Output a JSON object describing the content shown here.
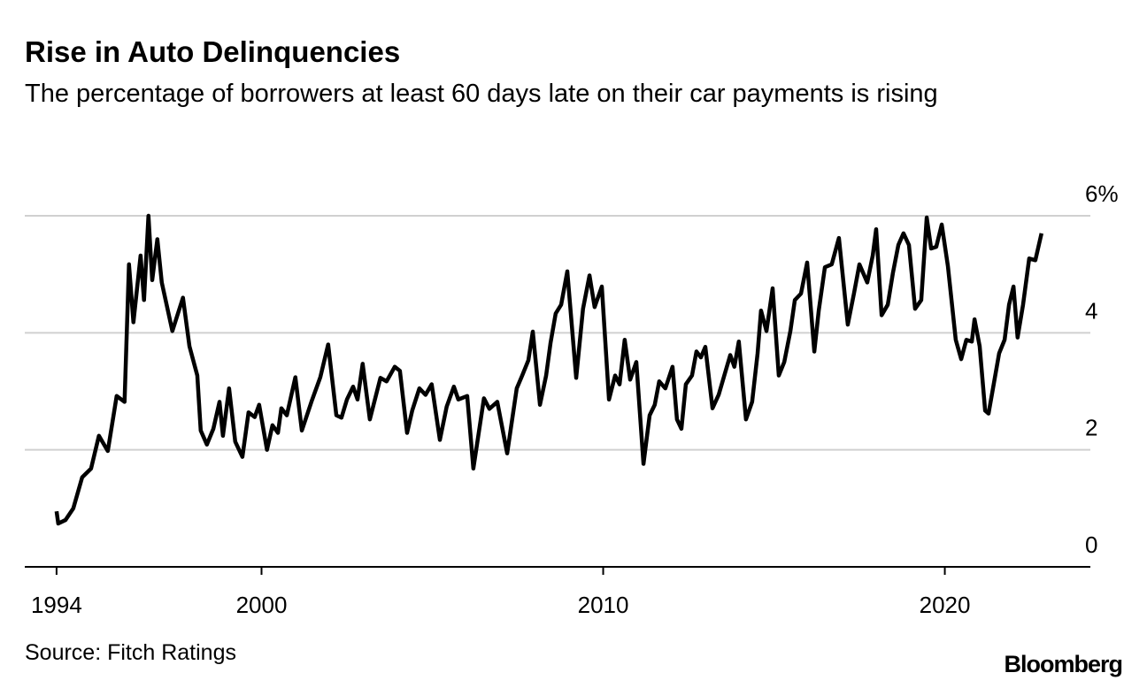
{
  "chart_data": {
    "type": "line",
    "title": "Rise in Auto Delinquencies",
    "subtitle": "The percentage of borrowers at least 60 days late on their car payments is rising",
    "source": "Source: Fitch Ratings",
    "brand": "Bloomberg",
    "x": [
      1994.0,
      1994.05,
      1994.26,
      1994.49,
      1994.75,
      1995.01,
      1995.24,
      1995.5,
      1995.76,
      1995.99,
      1996.12,
      1996.25,
      1996.46,
      1996.56,
      1996.69,
      1996.8,
      1996.95,
      1997.08,
      1997.39,
      1997.7,
      1997.89,
      1998.12,
      1998.22,
      1998.4,
      1998.59,
      1998.77,
      1998.87,
      1999.05,
      1999.23,
      1999.44,
      1999.62,
      1999.8,
      1999.93,
      2000.16,
      2000.32,
      2000.48,
      2000.58,
      2000.74,
      2000.99,
      2001.18,
      2001.46,
      2001.72,
      2001.95,
      2002.19,
      2002.34,
      2002.5,
      2002.68,
      2002.81,
      2002.96,
      2003.17,
      2003.48,
      2003.66,
      2003.9,
      2004.05,
      2004.26,
      2004.41,
      2004.62,
      2004.8,
      2004.98,
      2005.22,
      2005.42,
      2005.63,
      2005.76,
      2006.02,
      2006.2,
      2006.51,
      2006.67,
      2006.9,
      2007.19,
      2007.47,
      2007.63,
      2007.81,
      2007.94,
      2008.15,
      2008.33,
      2008.46,
      2008.61,
      2008.77,
      2008.95,
      2009.21,
      2009.41,
      2009.6,
      2009.75,
      2009.96,
      2010.17,
      2010.35,
      2010.48,
      2010.63,
      2010.79,
      2010.97,
      2011.18,
      2011.36,
      2011.51,
      2011.64,
      2011.82,
      2012.03,
      2012.16,
      2012.29,
      2012.42,
      2012.6,
      2012.73,
      2012.86,
      2012.99,
      2013.2,
      2013.38,
      2013.51,
      2013.72,
      2013.84,
      2013.97,
      2014.18,
      2014.36,
      2014.52,
      2014.62,
      2014.78,
      2014.96,
      2015.14,
      2015.3,
      2015.48,
      2015.61,
      2015.79,
      2015.97,
      2016.18,
      2016.31,
      2016.49,
      2016.69,
      2016.9,
      2017.16,
      2017.34,
      2017.5,
      2017.73,
      2017.89,
      2017.99,
      2018.15,
      2018.33,
      2018.48,
      2018.64,
      2018.79,
      2018.95,
      2019.13,
      2019.31,
      2019.47,
      2019.6,
      2019.75,
      2019.91,
      2020.09,
      2020.32,
      2020.48,
      2020.63,
      2020.79,
      2020.87,
      2021.02,
      2021.18,
      2021.28,
      2021.44,
      2021.59,
      2021.75,
      2021.88,
      2022.01,
      2022.13,
      2022.29,
      2022.47,
      2022.65,
      2022.83
    ],
    "series": [
      {
        "name": "Delinquencies",
        "color": "#000000",
        "values": [
          0.95,
          0.74,
          0.8,
          1.0,
          1.53,
          1.68,
          2.24,
          1.98,
          2.92,
          2.82,
          5.17,
          4.18,
          5.32,
          4.56,
          6.0,
          4.9,
          5.6,
          4.86,
          4.03,
          4.6,
          3.77,
          3.27,
          2.33,
          2.09,
          2.36,
          2.82,
          2.24,
          3.05,
          2.14,
          1.88,
          2.64,
          2.56,
          2.77,
          2.0,
          2.42,
          2.29,
          2.71,
          2.59,
          3.24,
          2.33,
          2.82,
          3.24,
          3.8,
          2.59,
          2.55,
          2.86,
          3.08,
          2.86,
          3.47,
          2.52,
          3.23,
          3.17,
          3.42,
          3.35,
          2.29,
          2.67,
          3.05,
          2.94,
          3.12,
          2.17,
          2.74,
          3.08,
          2.86,
          2.92,
          1.68,
          2.88,
          2.7,
          2.82,
          1.94,
          3.05,
          3.27,
          3.53,
          4.02,
          2.77,
          3.27,
          3.83,
          4.33,
          4.48,
          5.05,
          3.23,
          4.41,
          4.98,
          4.44,
          4.79,
          2.86,
          3.27,
          3.12,
          3.88,
          3.2,
          3.5,
          1.76,
          2.59,
          2.77,
          3.17,
          3.05,
          3.42,
          2.52,
          2.36,
          3.12,
          3.27,
          3.68,
          3.58,
          3.76,
          2.71,
          2.94,
          3.2,
          3.62,
          3.42,
          3.85,
          2.52,
          2.82,
          3.65,
          4.38,
          4.03,
          4.76,
          3.27,
          3.5,
          4.03,
          4.56,
          4.67,
          5.2,
          3.68,
          4.38,
          5.12,
          5.17,
          5.62,
          4.14,
          4.67,
          5.17,
          4.86,
          5.32,
          5.77,
          4.3,
          4.48,
          5.02,
          5.5,
          5.7,
          5.5,
          4.41,
          4.56,
          5.97,
          5.44,
          5.47,
          5.85,
          5.14,
          3.88,
          3.55,
          3.88,
          3.85,
          4.23,
          3.77,
          2.67,
          2.62,
          3.15,
          3.65,
          3.88,
          4.48,
          4.79,
          3.92,
          4.48,
          5.27,
          5.24,
          5.7
        ]
      }
    ],
    "xlim": [
      1993.07,
      2024.26
    ],
    "xticks": [
      1994,
      2000,
      2010,
      2020
    ],
    "ylim": [
      0,
      6
    ],
    "yticks": [
      0,
      2,
      4,
      {
        "value": 6,
        "label": "6%"
      }
    ],
    "grid": true
  }
}
